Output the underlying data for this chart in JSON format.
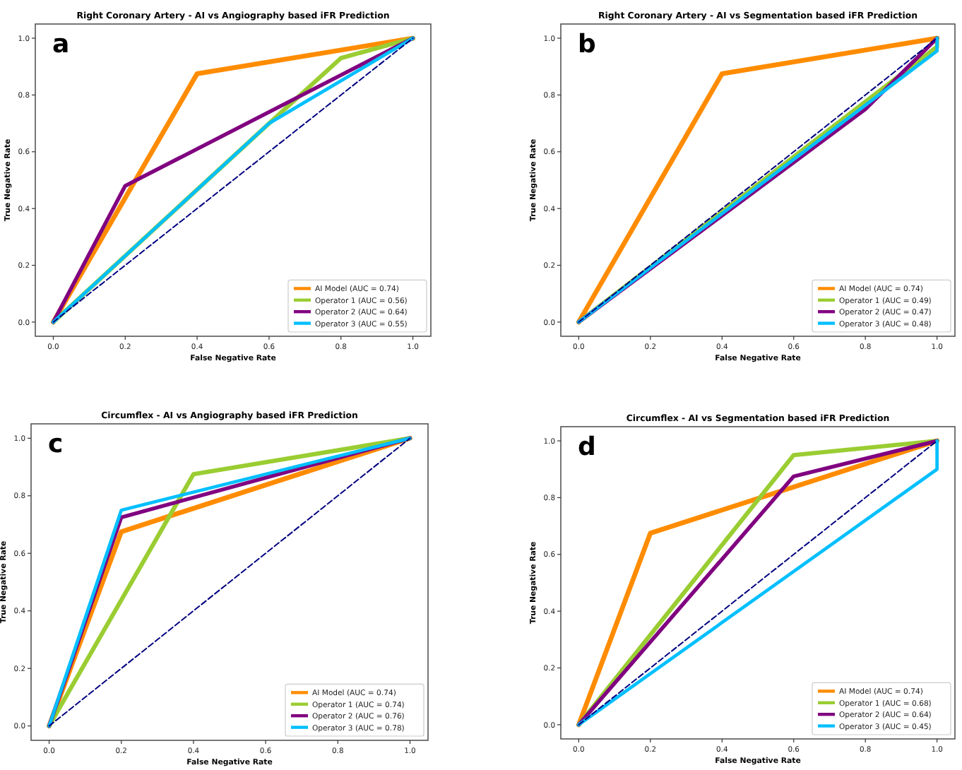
{
  "chart_data": [
    {
      "type": "line",
      "title": "Right Coronary Artery - AI vs Angiography based iFR Prediction",
      "xlabel": "False Negative Rate",
      "ylabel": "True Negative Rate",
      "annotations": [
        "a"
      ],
      "xlim": [
        -0.05,
        1.05
      ],
      "ylim": [
        -0.05,
        1.05
      ],
      "xticks": [
        {
          "value": 0,
          "label": "0.0"
        },
        {
          "value": 0.2,
          "label": "0.2"
        },
        {
          "value": 0.4,
          "label": "0.4"
        },
        {
          "value": 0.6,
          "label": "0.6"
        },
        {
          "value": 0.8,
          "label": "0.8"
        },
        {
          "value": 1,
          "label": "1.0"
        }
      ],
      "yticks": [
        {
          "value": 0,
          "label": "0.0"
        },
        {
          "value": 0.2,
          "label": "0.2"
        },
        {
          "value": 0.4,
          "label": "0.4"
        },
        {
          "value": 0.6,
          "label": "0.6"
        },
        {
          "value": 0.8,
          "label": "0.8"
        },
        {
          "value": 1,
          "label": "1.0"
        }
      ],
      "legend": "bottom right",
      "series": [
        {
          "name": "AI Model (AUC = 0.74)",
          "color": "#ff8c00",
          "x": [
            0,
            0.4,
            1
          ],
          "values": [
            0,
            0.875,
            1
          ]
        },
        {
          "name": "Operator 1 (AUC = 0.56)",
          "color": "#9acd32",
          "x": [
            0,
            0.6,
            0.8,
            1
          ],
          "values": [
            0,
            0.7,
            0.93,
            1
          ]
        },
        {
          "name": "Operator 2 (AUC = 0.64)",
          "color": "#800080",
          "x": [
            0,
            0.2,
            1
          ],
          "values": [
            0,
            0.48,
            1
          ]
        },
        {
          "name": "Operator 3 (AUC = 0.55)",
          "color": "#00bfff",
          "x": [
            0,
            0.6,
            1
          ],
          "values": [
            0,
            0.7,
            1
          ]
        },
        {
          "color": "#000080",
          "x": [
            0,
            1
          ],
          "values": [
            0,
            1
          ],
          "line_style": "dashed"
        }
      ]
    },
    {
      "type": "line",
      "title": "Right Coronary Artery - AI vs Segmentation based iFR Prediction",
      "xlabel": "False Negative Rate",
      "ylabel": "True Negative Rate",
      "annotations": [
        "b"
      ],
      "xlim": [
        -0.05,
        1.05
      ],
      "ylim": [
        -0.05,
        1.05
      ],
      "xticks": [
        {
          "value": 0,
          "label": "0.0"
        },
        {
          "value": 0.2,
          "label": "0.2"
        },
        {
          "value": 0.4,
          "label": "0.4"
        },
        {
          "value": 0.6,
          "label": "0.6"
        },
        {
          "value": 0.8,
          "label": "0.8"
        },
        {
          "value": 1,
          "label": "1.0"
        }
      ],
      "yticks": [
        {
          "value": 0,
          "label": "0.0"
        },
        {
          "value": 0.2,
          "label": "0.2"
        },
        {
          "value": 0.4,
          "label": "0.4"
        },
        {
          "value": 0.6,
          "label": "0.6"
        },
        {
          "value": 0.8,
          "label": "0.8"
        },
        {
          "value": 1,
          "label": "1.0"
        }
      ],
      "legend": "bottom right",
      "series": [
        {
          "name": "AI Model (AUC = 0.74)",
          "color": "#ff8c00",
          "x": [
            0,
            0.4,
            1
          ],
          "values": [
            0,
            0.875,
            1
          ]
        },
        {
          "name": "Operator 1 (AUC = 0.49)",
          "color": "#9acd32",
          "x": [
            0,
            1,
            1
          ],
          "values": [
            0,
            0.97,
            1
          ]
        },
        {
          "name": "Operator 2 (AUC = 0.47)",
          "color": "#800080",
          "x": [
            0,
            0.8,
            1
          ],
          "values": [
            0,
            0.75,
            1
          ]
        },
        {
          "name": "Operator 3 (AUC = 0.48)",
          "color": "#00bfff",
          "x": [
            0,
            1,
            1
          ],
          "values": [
            0,
            0.955,
            1
          ]
        },
        {
          "color": "#000080",
          "x": [
            0,
            1
          ],
          "values": [
            0,
            1
          ],
          "line_style": "dashed"
        }
      ]
    },
    {
      "type": "line",
      "title": "Circumflex - AI vs Angiography based iFR Prediction",
      "xlabel": "False Negative Rate",
      "ylabel": "True Negative Rate",
      "annotations": [
        "c"
      ],
      "xlim": [
        -0.05,
        1.05
      ],
      "ylim": [
        -0.05,
        1.05
      ],
      "xticks": [
        {
          "value": 0,
          "label": "0.0"
        },
        {
          "value": 0.2,
          "label": "0.2"
        },
        {
          "value": 0.4,
          "label": "0.4"
        },
        {
          "value": 0.6,
          "label": "0.6"
        },
        {
          "value": 0.8,
          "label": "0.8"
        },
        {
          "value": 1,
          "label": "1.0"
        }
      ],
      "yticks": [
        {
          "value": 0,
          "label": "0.0"
        },
        {
          "value": 0.2,
          "label": "0.2"
        },
        {
          "value": 0.4,
          "label": "0.4"
        },
        {
          "value": 0.6,
          "label": "0.6"
        },
        {
          "value": 0.8,
          "label": "0.8"
        },
        {
          "value": 1,
          "label": "1.0"
        }
      ],
      "legend": "bottom right",
      "series": [
        {
          "name": "AI Model (AUC = 0.74)",
          "color": "#ff8c00",
          "x": [
            0,
            0.2,
            1
          ],
          "values": [
            0,
            0.675,
            1
          ]
        },
        {
          "name": "Operator 1 (AUC = 0.74)",
          "color": "#9acd32",
          "x": [
            0,
            0.4,
            1
          ],
          "values": [
            0,
            0.875,
            1
          ]
        },
        {
          "name": "Operator 2 (AUC = 0.76)",
          "color": "#800080",
          "x": [
            0,
            0.2,
            1
          ],
          "values": [
            0,
            0.725,
            1
          ]
        },
        {
          "name": "Operator 3 (AUC = 0.78)",
          "color": "#00bfff",
          "x": [
            0,
            0.2,
            1
          ],
          "values": [
            0,
            0.75,
            1
          ]
        },
        {
          "color": "#000080",
          "x": [
            0,
            1
          ],
          "values": [
            0,
            1
          ],
          "line_style": "dashed"
        }
      ]
    },
    {
      "type": "line",
      "title": "Circumflex - AI vs Segmentation based iFR Prediction",
      "xlabel": "False Negative Rate",
      "ylabel": "True Negative Rate",
      "annotations": [
        "d"
      ],
      "xlim": [
        -0.05,
        1.05
      ],
      "ylim": [
        -0.05,
        1.05
      ],
      "xticks": [
        {
          "value": 0,
          "label": "0.0"
        },
        {
          "value": 0.2,
          "label": "0.2"
        },
        {
          "value": 0.4,
          "label": "0.4"
        },
        {
          "value": 0.6,
          "label": "0.6"
        },
        {
          "value": 0.8,
          "label": "0.8"
        },
        {
          "value": 1,
          "label": "1.0"
        }
      ],
      "yticks": [
        {
          "value": 0,
          "label": "0.0"
        },
        {
          "value": 0.2,
          "label": "0.2"
        },
        {
          "value": 0.4,
          "label": "0.4"
        },
        {
          "value": 0.6,
          "label": "0.6"
        },
        {
          "value": 0.8,
          "label": "0.8"
        },
        {
          "value": 1,
          "label": "1.0"
        }
      ],
      "legend": "bottom right",
      "series": [
        {
          "name": "AI Model (AUC = 0.74)",
          "color": "#ff8c00",
          "x": [
            0,
            0.2,
            1
          ],
          "values": [
            0,
            0.675,
            1
          ]
        },
        {
          "name": "Operator 1 (AUC = 0.68)",
          "color": "#9acd32",
          "x": [
            0,
            0.6,
            1
          ],
          "values": [
            0,
            0.95,
            1
          ]
        },
        {
          "name": "Operator 2 (AUC = 0.64)",
          "color": "#800080",
          "x": [
            0,
            0.6,
            1
          ],
          "values": [
            0,
            0.875,
            1
          ]
        },
        {
          "name": "Operator 3 (AUC = 0.45)",
          "color": "#00bfff",
          "x": [
            0,
            1,
            1
          ],
          "values": [
            0,
            0.9,
            1
          ]
        },
        {
          "color": "#000080",
          "x": [
            0,
            1
          ],
          "values": [
            0,
            1
          ],
          "line_style": "dashed"
        }
      ]
    }
  ]
}
